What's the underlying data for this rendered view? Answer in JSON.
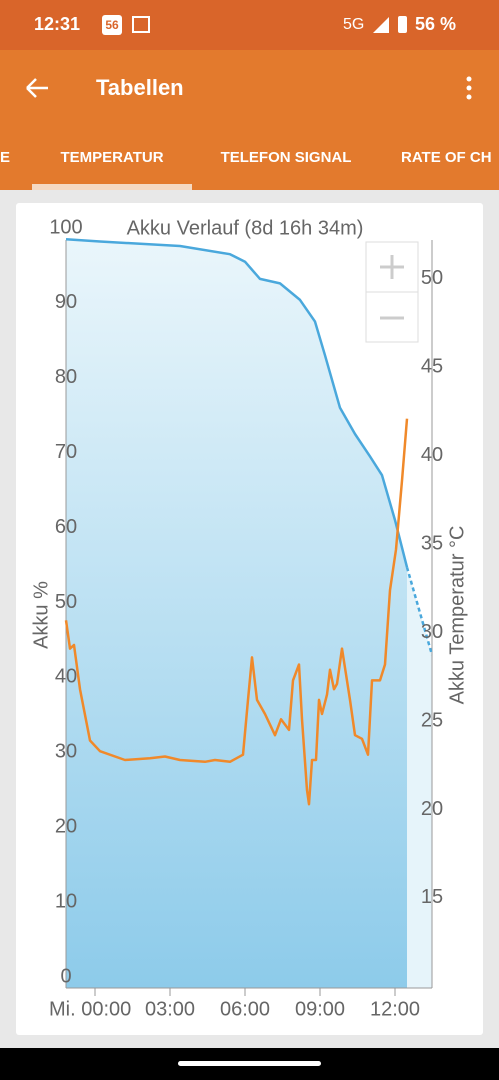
{
  "status_bar": {
    "time": "12:31",
    "badge": "56",
    "network": "5G",
    "battery": "56 %"
  },
  "app_bar": {
    "title": "Tabellen"
  },
  "tabs": [
    "E",
    "TEMPERATUR",
    "TELEFON SIGNAL",
    "RATE OF CH"
  ],
  "chart_data": {
    "type": "line",
    "title": "Akku Verlauf (8d 16h 34m)",
    "y_label": "Akku %",
    "y2_label": "Akku Temperatur °C",
    "xlim": [
      -1.16,
      13.48
    ],
    "xticks": [
      {
        "value": 0,
        "label": "Mi. 00:00"
      },
      {
        "value": 3,
        "label": "03:00"
      },
      {
        "value": 6,
        "label": "06:00"
      },
      {
        "value": 9,
        "label": "09:00"
      },
      {
        "value": 12,
        "label": "12:00"
      }
    ],
    "ylim": [
      0,
      100
    ],
    "yticks": [
      0,
      10,
      20,
      30,
      40,
      50,
      60,
      70,
      80,
      90,
      100
    ],
    "y2lim": [
      10.53,
      52.88
    ],
    "y2ticks": [
      15,
      20,
      25,
      30,
      35,
      40,
      45,
      50
    ],
    "series": [
      {
        "color": "#4aa8dc",
        "area": true,
        "x": [
          -1.16,
          0.2,
          3.4,
          5.4,
          6.0,
          6.6,
          7.4,
          8.2,
          8.8,
          9.2,
          9.8,
          10.4,
          11.0,
          11.48,
          12.0,
          12.48
        ],
        "values": [
          98.5,
          98.2,
          97.6,
          96.5,
          95.5,
          93.2,
          92.6,
          90.4,
          87.5,
          83,
          76,
          72.5,
          69.5,
          67,
          61,
          54.7
        ]
      },
      {
        "color": "#4aa8dc",
        "dash": true,
        "x": [
          12.48,
          13.48
        ],
        "values": [
          54.7,
          43
        ]
      },
      {
        "color": "#f0892a",
        "axis": "y2",
        "x": [
          -1.16,
          -1.0,
          -0.84,
          -0.6,
          -0.2,
          0.2,
          1.2,
          2.2,
          2.8,
          3.4,
          4.4,
          4.8,
          5.4,
          5.92,
          6.12,
          6.28,
          6.48,
          6.8,
          7.2,
          7.44,
          7.76,
          7.92,
          8.16,
          8.28,
          8.48,
          8.56,
          8.68,
          8.84,
          8.96,
          9.08,
          9.28,
          9.4,
          9.56,
          9.68,
          9.88,
          10.2,
          10.4,
          10.68,
          10.92,
          11.08,
          11.4,
          11.6,
          11.8,
          12.04,
          12.28,
          12.48
        ],
        "values": [
          30.7,
          29.1,
          29.3,
          26.8,
          23.9,
          23.3,
          22.8,
          22.9,
          23.0,
          22.8,
          22.7,
          22.8,
          22.7,
          23.1,
          26.2,
          28.6,
          26.2,
          25.4,
          24.2,
          25.1,
          24.5,
          27.3,
          28.2,
          25.1,
          21.1,
          20.3,
          22.8,
          22.8,
          26.2,
          25.4,
          26.5,
          27.9,
          26.8,
          27.1,
          29.1,
          26.2,
          24.2,
          24.0,
          23.1,
          27.3,
          27.3,
          28.2,
          32.4,
          34.7,
          38.6,
          42.1
        ]
      }
    ]
  }
}
